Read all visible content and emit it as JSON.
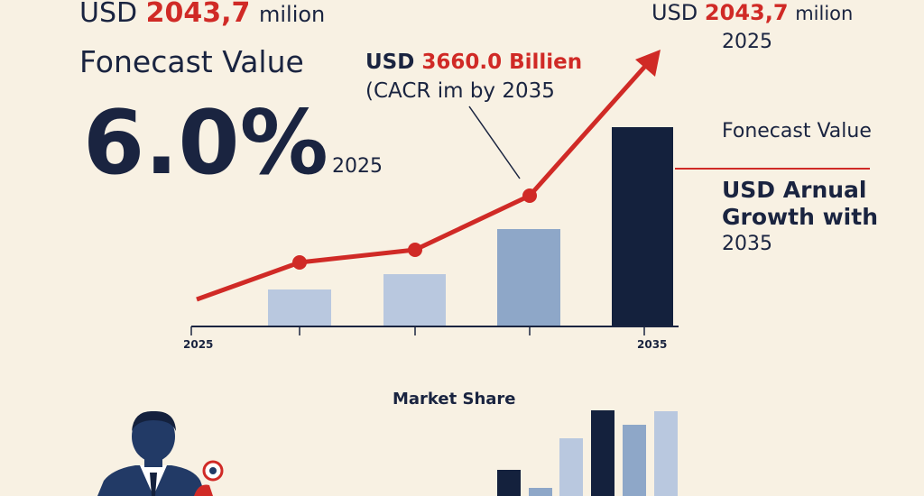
{
  "headline": {
    "prefix": "USD",
    "amount": "2043,7",
    "unit": "milion"
  },
  "headline_label": "Fonecast Value",
  "rate": "6.0%",
  "rate_year": "2025",
  "callout": {
    "prefix": "USD",
    "amount": "3660.0 Billien",
    "note": "(CACR im by 2035"
  },
  "side": {
    "prefix": "USD",
    "amount": "2043,7",
    "unit": "milion",
    "year": "2025",
    "label": "Fonecast Value",
    "growth_lines": [
      "USD Arnual",
      "Growth with"
    ],
    "growth_year": "2035"
  },
  "axis": {
    "start": "2025",
    "end": "2035"
  },
  "market_share_title": "Market Share"
}
